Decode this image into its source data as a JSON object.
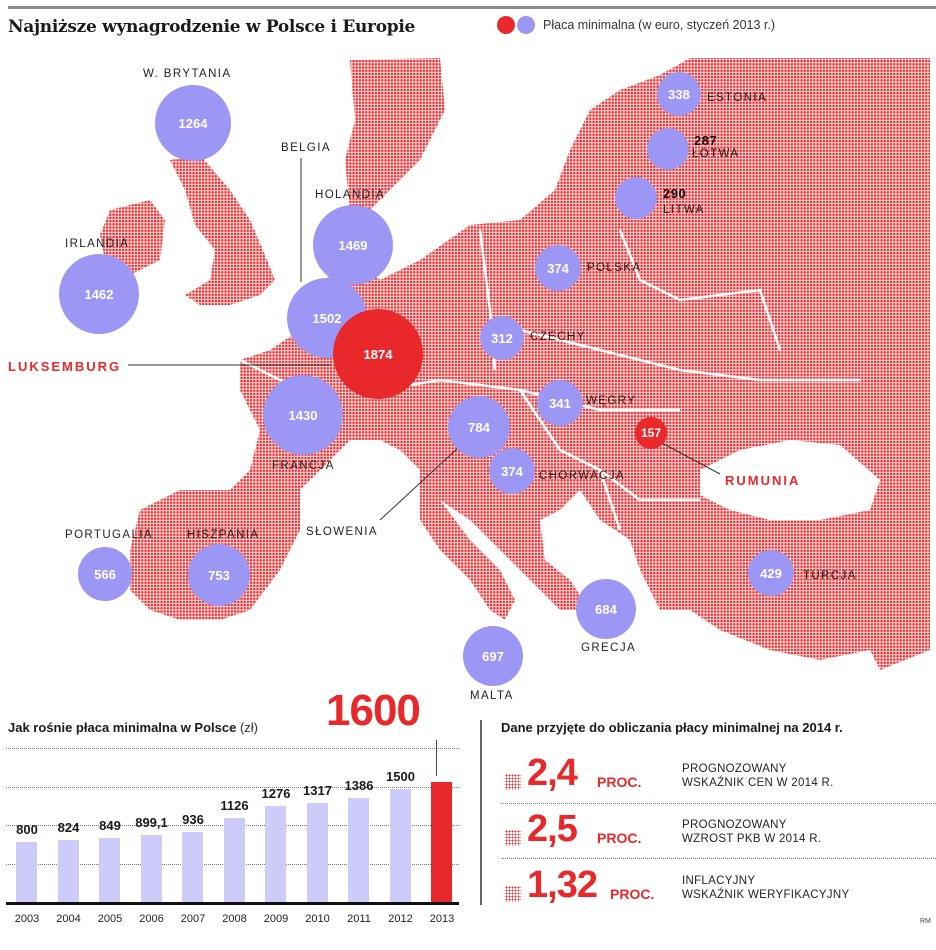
{
  "header": {
    "title": "Najniższe wynagrodzenie w Polsce i Europie",
    "legend_label": "Płaca minimalna (w euro, styczeń 2013 r.)",
    "legend_colors": [
      "#e8282a",
      "#9c96f4"
    ]
  },
  "colors": {
    "accent_red": "#e8282a",
    "bubble_blue": "#9c96f4",
    "bar_blue": "#cccbfa",
    "map_dots": "#e8282a"
  },
  "map": {
    "countries": [
      {
        "name": "W. BRYTANIA",
        "value": "1264"
      },
      {
        "name": "IRLANDIA",
        "value": "1462"
      },
      {
        "name": "BELGIA",
        "value": "1502"
      },
      {
        "name": "HOLANDIA",
        "value": "1469"
      },
      {
        "name": "LUKSEMBURG",
        "value": "1874"
      },
      {
        "name": "FRANCJA",
        "value": "1430"
      },
      {
        "name": "PORTUGALIA",
        "value": "566"
      },
      {
        "name": "HISZPANIA",
        "value": "753"
      },
      {
        "name": "SŁOWENIA",
        "value": "784"
      },
      {
        "name": "MALTA",
        "value": "697"
      },
      {
        "name": "GRECJA",
        "value": "684"
      },
      {
        "name": "CHORWACJA",
        "value": "374"
      },
      {
        "name": "WĘGRY",
        "value": "341"
      },
      {
        "name": "CZECHY",
        "value": "312"
      },
      {
        "name": "POLSKA",
        "value": "374"
      },
      {
        "name": "LITWA",
        "value": "290"
      },
      {
        "name": "ŁOTWA",
        "value": "287"
      },
      {
        "name": "ESTONIA",
        "value": "338"
      },
      {
        "name": "RUMUNIA",
        "value": "157"
      },
      {
        "name": "TURCJA",
        "value": "429"
      }
    ]
  },
  "bar_chart": {
    "title": "Jak rośnie płaca minimalna w Polsce",
    "unit": "(zł)",
    "highlight_value": "1600"
  },
  "stats": {
    "title": "Dane przyjęte do obliczania płacy minimalnej na 2014 r.",
    "rows": [
      {
        "value": "2,4",
        "unit": "PROC.",
        "line1": "PROGNOZOWANY",
        "line2": "WSKAŹNIK CEN W 2014 R."
      },
      {
        "value": "2,5",
        "unit": "PROC.",
        "line1": "PROGNOZOWANY",
        "line2": "WZROST PKB W 2014 R."
      },
      {
        "value": "1,32",
        "unit": "PROC.",
        "line1": "INFLACYJNY",
        "line2": "WSKAŹNIK WERYFIKACYJNY"
      }
    ]
  },
  "credit": "RM",
  "chart_data": [
    {
      "type": "bubble-map",
      "title": "Najniższe wynagrodzenie w Polsce i Europie",
      "legend": [
        "Płaca minimalna (w euro, styczeń 2013 r.)"
      ],
      "unit": "EUR",
      "categories": [
        "W. Brytania",
        "Irlandia",
        "Belgia",
        "Holandia",
        "Luksemburg",
        "Francja",
        "Portugalia",
        "Hiszpania",
        "Słowenia",
        "Malta",
        "Grecja",
        "Chorwacja",
        "Węgry",
        "Czechy",
        "Polska",
        "Litwa",
        "Łotwa",
        "Estonia",
        "Rumunia",
        "Turcja"
      ],
      "values": [
        1264,
        1462,
        1502,
        1469,
        1874,
        1430,
        566,
        753,
        784,
        697,
        684,
        374,
        341,
        312,
        374,
        290,
        287,
        338,
        157,
        429
      ],
      "highlighted": {
        "max": "Luksemburg",
        "min": "Rumunia"
      }
    },
    {
      "type": "bar",
      "title": "Jak rośnie płaca minimalna w Polsce (zł)",
      "xlabel": "",
      "ylabel": "zł",
      "categories": [
        "2003",
        "2004",
        "2005",
        "2006",
        "2007",
        "2008",
        "2009",
        "2010",
        "2011",
        "2012",
        "2013"
      ],
      "values": [
        800,
        824,
        849,
        899.1,
        936,
        1126,
        1276,
        1317,
        1386,
        1500,
        1600
      ],
      "value_labels": [
        "800",
        "824",
        "849",
        "899,1",
        "936",
        "1126",
        "1276",
        "1317",
        "1386",
        "1500",
        "1600"
      ],
      "highlight_index": 10,
      "grid": true,
      "ylim": [
        0,
        1900
      ]
    },
    {
      "type": "table",
      "title": "Dane przyjęte do obliczania płacy minimalnej na 2014 r.",
      "rows": [
        {
          "label": "Prognozowany wskaźnik cen w 2014 r.",
          "value": 2.4,
          "unit": "proc."
        },
        {
          "label": "Prognozowany wzrost PKB w 2014 r.",
          "value": 2.5,
          "unit": "proc."
        },
        {
          "label": "Inflacyjny wskaźnik weryfikacyjny",
          "value": 1.32,
          "unit": "proc."
        }
      ]
    }
  ]
}
